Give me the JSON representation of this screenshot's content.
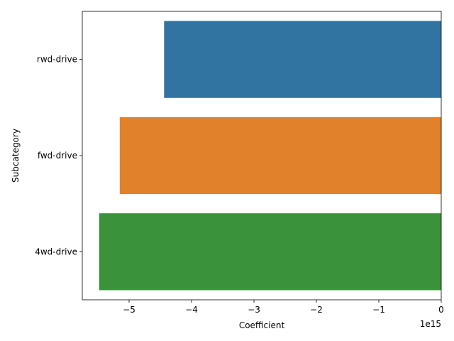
{
  "chart_data": {
    "type": "bar",
    "orientation": "horizontal",
    "categories": [
      "rwd-drive",
      "fwd-drive",
      "4wd-drive"
    ],
    "values": [
      -4440000000000000.0,
      -5150000000000000.0,
      -5480000000000000.0
    ],
    "colors": [
      "#3274a1",
      "#e1812c",
      "#3a923a"
    ],
    "xlabel": "Coefficient",
    "ylabel": "Subcategory",
    "xlim": [
      -5750000000000000.0,
      0
    ],
    "xticks": [
      -5000000000000000.0,
      -4000000000000000.0,
      -3000000000000000.0,
      -2000000000000000.0,
      -1000000000000000.0,
      0
    ],
    "xtick_labels": [
      "−5",
      "−4",
      "−3",
      "−2",
      "−1",
      "0"
    ],
    "offset_label": "1e15",
    "grid": false,
    "legend": "none"
  }
}
